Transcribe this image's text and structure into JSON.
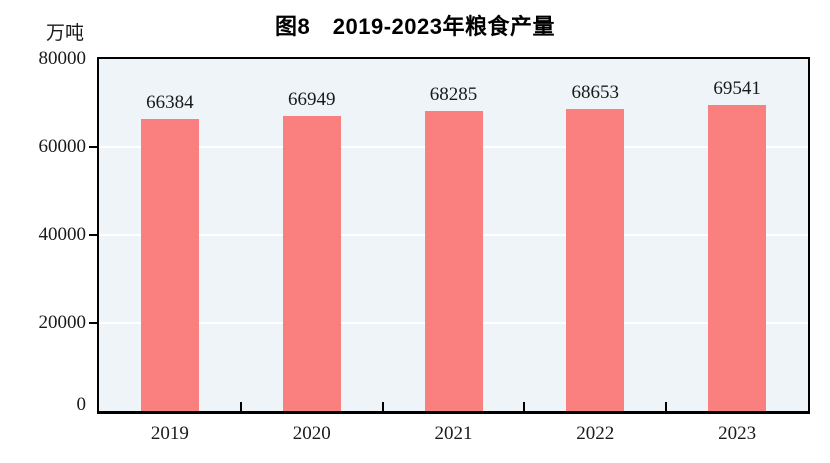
{
  "chart_data": {
    "type": "bar",
    "title": "图8　2019-2023年粮食产量",
    "unit_label": "万吨",
    "categories": [
      "2019",
      "2020",
      "2021",
      "2022",
      "2023"
    ],
    "values": [
      66384,
      66949,
      68285,
      68653,
      69541
    ],
    "value_labels": [
      "66384",
      "66949",
      "68285",
      "68653",
      "69541"
    ],
    "xlabel": "",
    "ylabel": "万吨",
    "ylim": [
      0,
      80000
    ],
    "y_ticks": [
      0,
      20000,
      40000,
      60000,
      80000
    ],
    "y_tick_labels": [
      "0",
      "20000",
      "40000",
      "60000",
      "80000"
    ],
    "gridlines": [
      20000,
      40000,
      60000
    ],
    "grid": "horizontal",
    "legend": "none",
    "colors": {
      "bar": "#FA8080",
      "plot_background": "#EFF4F8",
      "gridline": "#FFFFFF",
      "axis": "#000000",
      "text": "#1A1A1A"
    }
  }
}
